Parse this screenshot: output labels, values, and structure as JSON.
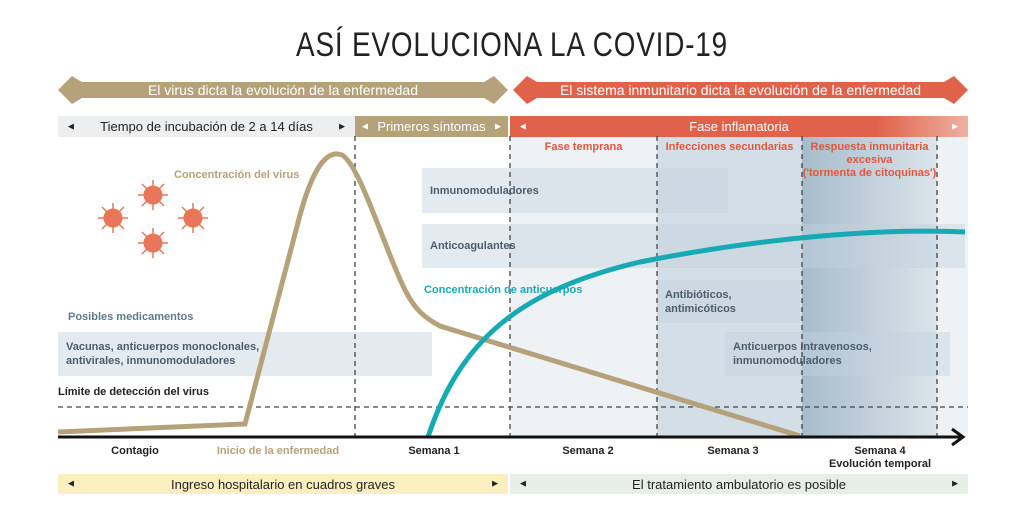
{
  "title": "ASÍ EVOLUCIONA LA COVID-19",
  "banners": {
    "virus": "El virus dicta la evolución de la enfermedad",
    "immune": "El sistema inmunitario dicta la evolución de la enfermedad"
  },
  "phases": {
    "incubation": "Tiempo de incubación de 2 a 14 días",
    "first_symptoms": "Primeros síntomas",
    "inflammatory": "Fase inflamatoria",
    "early": "Fase temprana",
    "secondary": "Infecciones secundarias",
    "excessive_l1": "Respuesta inmunitaria",
    "excessive_l2": "excesiva",
    "excessive_l3": "('tormenta de citoquinas')"
  },
  "curves": {
    "virus": "Concentración del virus",
    "antibodies": "Concentración de anticuerpos",
    "detection_limit": "Límite de detección del virus"
  },
  "medications": {
    "heading": "Posibles medicamentos",
    "immunomodulators": "Inmunomoduladores",
    "anticoagulants": "Anticoagulantes",
    "antibiotics": "Antibióticos, antimicóticos",
    "vaccines_l1": "Vacunas, anticuerpos monoclonales,",
    "vaccines_l2": "antivirales, inmunomoduladores",
    "iv_l1": "Anticuerpos intravenosos,",
    "iv_l2": "inmunomoduladores"
  },
  "timeline": {
    "contagion": "Contagio",
    "onset": "Inicio de la enfermedad",
    "week1": "Semana 1",
    "week2": "Semana 2",
    "week3": "Semana 3",
    "week4": "Semana 4",
    "axis_label": "Evolución temporal"
  },
  "care": {
    "hospital": "Ingreso hospitalario en cuadros graves",
    "outpatient": "El tratamiento ambulatorio es posible"
  },
  "colors": {
    "gold": "#b5a27a",
    "red": "#e0624a",
    "teal": "#17aab5",
    "arrow_left": "◄",
    "arrow_right": "►"
  }
}
